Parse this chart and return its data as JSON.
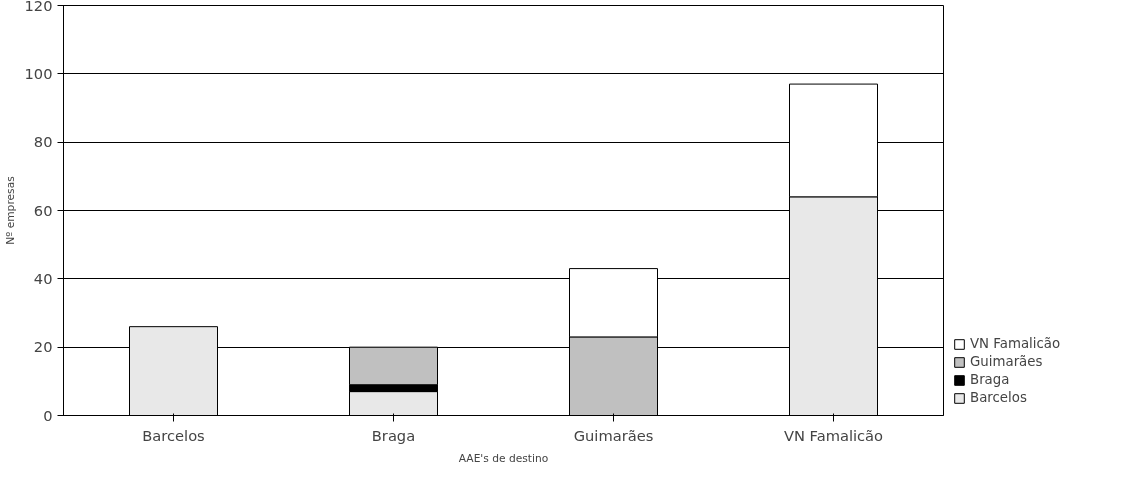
{
  "chart_data": {
    "type": "bar",
    "stacked": true,
    "xlabel": "AAE's de destino",
    "ylabel": "Nº empresas",
    "categories": [
      "Barcelos",
      "Braga",
      "Guimarães",
      "VN Famalicão"
    ],
    "series": [
      {
        "name": "Barcelos",
        "color": "#e8e8e8",
        "values": [
          26,
          7,
          null,
          64
        ]
      },
      {
        "name": "Braga",
        "color": "#000000",
        "values": [
          null,
          2,
          null,
          null
        ]
      },
      {
        "name": "Guimarães",
        "color": "#c0c0c0",
        "values": [
          null,
          11,
          23,
          null
        ]
      },
      {
        "name": "VN Famalicão",
        "color": "#ffffff",
        "values": [
          null,
          null,
          20,
          33
        ]
      }
    ],
    "ylim": [
      0,
      120
    ],
    "yticks": [
      0,
      20,
      40,
      60,
      80,
      100,
      120
    ],
    "grid": "y",
    "legend": "right"
  }
}
